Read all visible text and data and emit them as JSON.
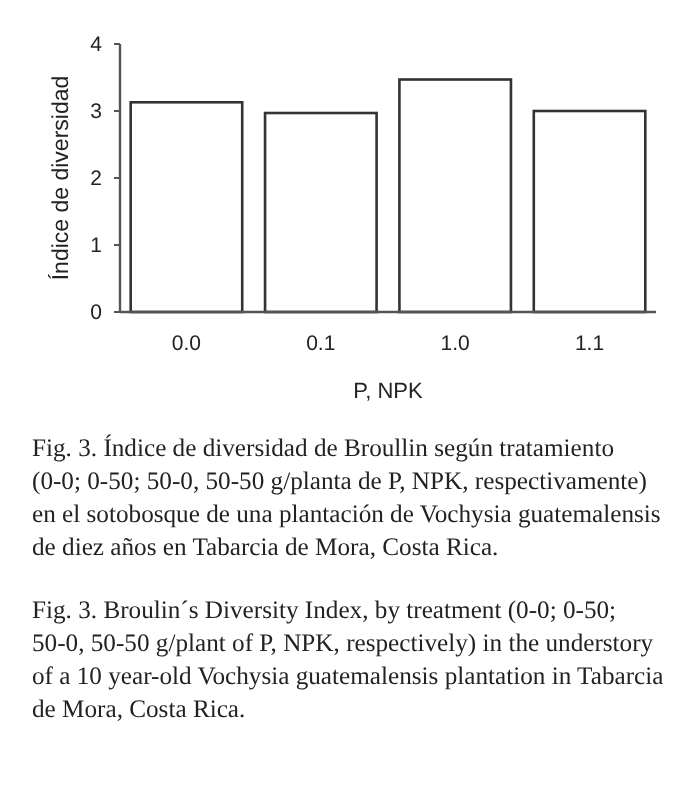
{
  "chart_data": {
    "type": "bar",
    "xlabel": "P, NPK",
    "ylabel": "Índice de diversidad",
    "categories": [
      "0.0",
      "0.1",
      "1.0",
      "1.1"
    ],
    "values": [
      3.13,
      2.97,
      3.47,
      3.0
    ],
    "color": "#ffffff",
    "ylim": [
      0,
      4
    ],
    "yticks": [
      0,
      1,
      2,
      3,
      4
    ],
    "grid": false,
    "annotations": [
      "Fig. 3. Índice de diversidad de Broullin según tratamiento (0-0; 0-50; 50-0, 50-50 g/planta de P, NPK, respectivamente) en el sotobosque de una plantación de Vochysia guatemalensis de diez años en Tabarcia de Mora, Costa Rica.",
      "Fig. 3. Broulin´s Diversity Index, by treatment (0-0; 0-50; 50-0, 50-50 g/plant of P, NPK, respectively) in the understory of a 10 year-old Vochysia guatemalensis plantation in Tabarcia de Mora, Costa Rica."
    ]
  }
}
